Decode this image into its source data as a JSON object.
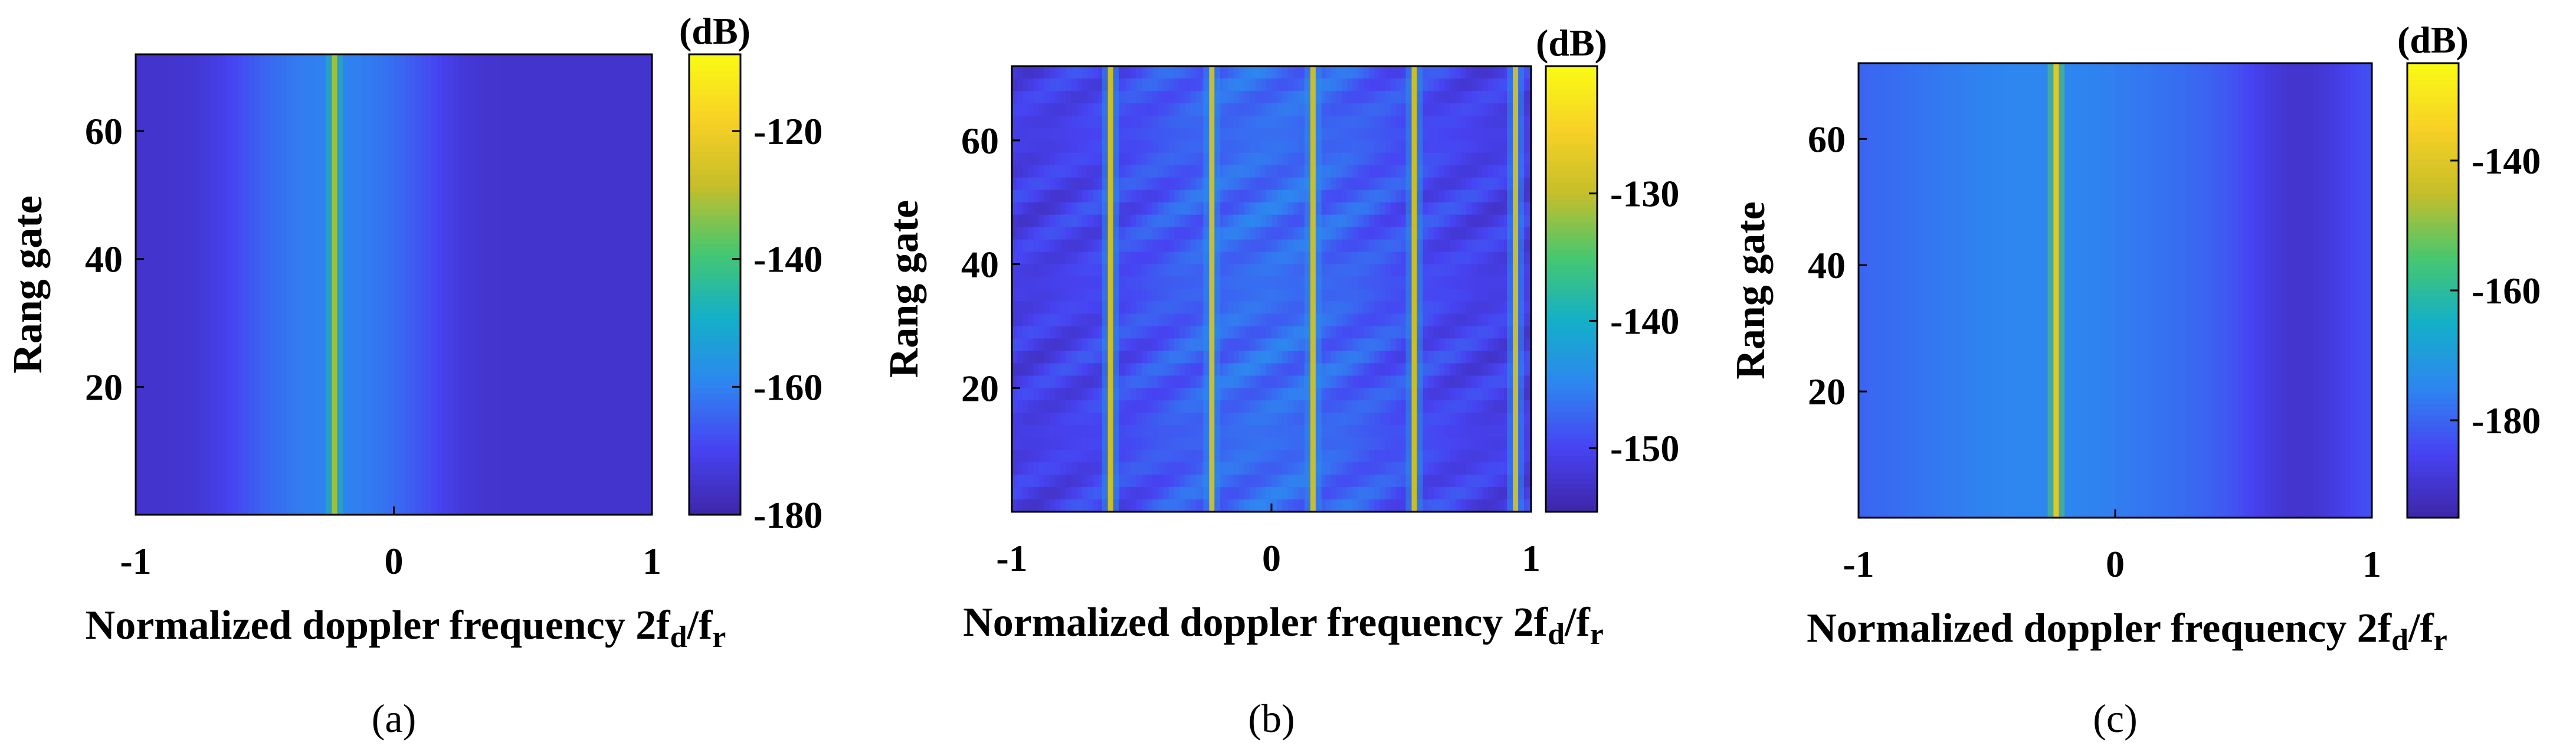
{
  "figure": {
    "colors": {
      "colormap": [
        "#3e26a8",
        "#4743f2",
        "#2e86f0",
        "#13b0c8",
        "#47c76e",
        "#c6be2a",
        "#f8d126",
        "#f9fb15"
      ],
      "axis": "#000000",
      "background": "#ffffff"
    }
  },
  "chart_data": [
    {
      "type": "heatmap",
      "caption": "(a)",
      "title": "",
      "xlabel": "Normalized doppler frequency 2f",
      "xlabel_sub1": "d",
      "xlabel_mid": "/f",
      "xlabel_sub2": "r",
      "ylabel": "Rang gate",
      "xlim": [
        -1,
        1
      ],
      "ylim": [
        0,
        72
      ],
      "xticks": [
        -1,
        0,
        1
      ],
      "xtick_labels": [
        "-1",
        "0",
        "1"
      ],
      "yticks": [
        20,
        40,
        60
      ],
      "ytick_labels": [
        "20",
        "40",
        "60"
      ],
      "colorbar": {
        "label": "(dB)",
        "clim": [
          -180,
          -108
        ],
        "ticks": [
          -120,
          -140,
          -160,
          -180
        ],
        "tick_labels": [
          "-120",
          "-140",
          "-160",
          "-180"
        ]
      },
      "floor_db": -180,
      "base_level_db": -175,
      "broad_peak": {
        "center": -0.23,
        "width": 0.25,
        "level_db": -160
      },
      "spectral_lines": [
        {
          "freq": -0.23,
          "level_db": -132
        }
      ],
      "row_texture_db": 0
    },
    {
      "type": "heatmap",
      "caption": "(b)",
      "title": "",
      "xlabel": "Normalized doppler frequency 2f",
      "xlabel_sub1": "d",
      "xlabel_mid": "/f",
      "xlabel_sub2": "r",
      "ylabel": "Rang gate",
      "xlim": [
        -1,
        1
      ],
      "ylim": [
        0,
        72
      ],
      "xticks": [
        -1,
        0,
        1
      ],
      "xtick_labels": [
        "-1",
        "0",
        "1"
      ],
      "yticks": [
        20,
        40,
        60
      ],
      "ytick_labels": [
        "20",
        "40",
        "60"
      ],
      "colorbar": {
        "label": "(dB)",
        "clim": [
          -155,
          -120
        ],
        "ticks": [
          -130,
          -140,
          -150
        ],
        "tick_labels": [
          "-130",
          "-140",
          "-150"
        ]
      },
      "floor_db": -155,
      "base_level_db": -151,
      "broad_peak": {
        "center": 0.0,
        "width": 0.5,
        "level_db": -149
      },
      "spectral_lines": [
        {
          "freq": -0.62,
          "level_db": -130
        },
        {
          "freq": -0.23,
          "level_db": -130
        },
        {
          "freq": 0.16,
          "level_db": -130
        },
        {
          "freq": 0.55,
          "level_db": -130
        },
        {
          "freq": 0.94,
          "level_db": -130
        }
      ],
      "row_texture_db": 4
    },
    {
      "type": "heatmap",
      "caption": "(c)",
      "title": "",
      "xlabel": "Normalized doppler frequency 2f",
      "xlabel_sub1": "d",
      "xlabel_mid": "/f",
      "xlabel_sub2": "r",
      "ylabel": "Rang gate",
      "xlim": [
        -1,
        1
      ],
      "ylim": [
        0,
        72
      ],
      "xticks": [
        -1,
        0,
        1
      ],
      "xtick_labels": [
        "-1",
        "0",
        "1"
      ],
      "yticks": [
        20,
        40,
        60
      ],
      "ytick_labels": [
        "20",
        "40",
        "60"
      ],
      "colorbar": {
        "label": "(dB)",
        "clim": [
          -195,
          -125
        ],
        "ticks": [
          -140,
          -160,
          -180
        ],
        "tick_labels": [
          "-140",
          "-160",
          "-180"
        ]
      },
      "floor_db": -195,
      "base_level_db": -181,
      "broad_peak": {
        "center": -0.3,
        "width": 0.45,
        "level_db": -176
      },
      "right_dip": {
        "center": 0.72,
        "width": 0.22,
        "level_db": -190
      },
      "spectral_lines": [
        {
          "freq": -0.23,
          "level_db": -140
        }
      ],
      "row_texture_db": 0
    }
  ]
}
